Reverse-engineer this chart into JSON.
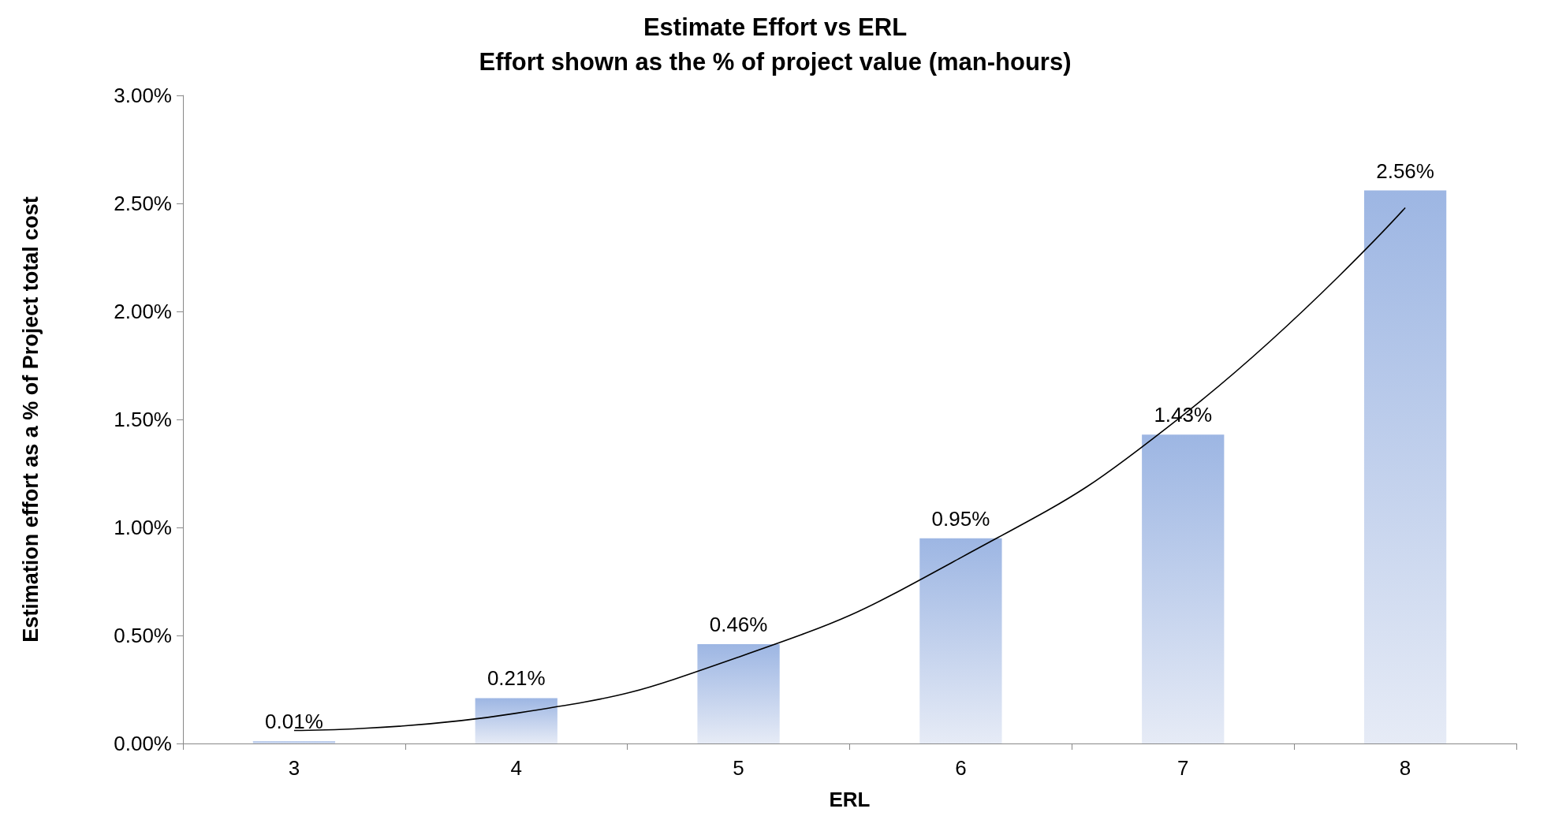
{
  "chart_data": {
    "type": "bar",
    "title": "Estimate Effort vs ERL",
    "subtitle": "Effort shown as the % of project value (man-hours)",
    "xlabel": "ERL",
    "ylabel": "Estimation effort as a % of Project total cost",
    "categories": [
      "3",
      "4",
      "5",
      "6",
      "7",
      "8"
    ],
    "series": [
      {
        "color": "#9db6e3",
        "values": [
          0.01,
          0.21,
          0.46,
          0.95,
          1.43,
          2.56
        ],
        "value_labels": [
          "0.01%",
          "0.21%",
          "0.46%",
          "0.95%",
          "1.43%",
          "2.56%"
        ]
      },
      {
        "type": "line",
        "color": "#000000",
        "x": [
          "3",
          "4",
          "5",
          "6",
          "7",
          "8"
        ],
        "values": [
          0.06,
          0.14,
          0.4,
          0.86,
          1.52,
          2.48
        ],
        "marker": "none"
      }
    ],
    "ylim": [
      0,
      3
    ],
    "yticks": [
      {
        "value": 0,
        "label": "0.00%"
      },
      {
        "value": 0.5,
        "label": "0.50%"
      },
      {
        "value": 1,
        "label": "1.00%"
      },
      {
        "value": 1.5,
        "label": "1.50%"
      },
      {
        "value": 2,
        "label": "2.00%"
      },
      {
        "value": 2.5,
        "label": "2.50%"
      },
      {
        "value": 3,
        "label": "3.00%"
      }
    ],
    "grid": false
  }
}
